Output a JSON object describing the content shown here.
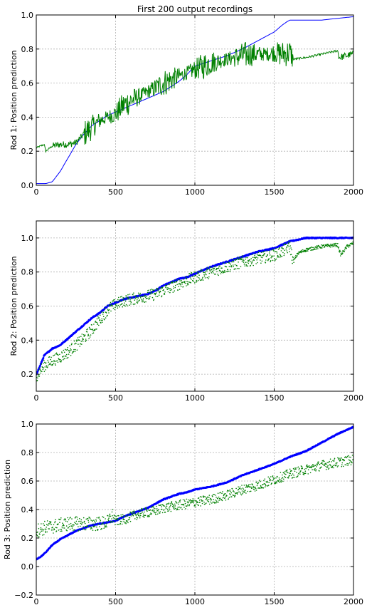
{
  "figure": {
    "title": "First 200 output recordings"
  },
  "colors": {
    "blue": "#0000ff",
    "green": "#008000"
  },
  "chart_data": [
    {
      "type": "line",
      "title": "First 200 output recordings",
      "xlabel": "",
      "ylabel": "Rod 1: Position prediction",
      "xlim": [
        0,
        2000
      ],
      "ylim": [
        0.0,
        1.0
      ],
      "xticks": [
        0,
        500,
        1000,
        1500,
        2000
      ],
      "yticks": [
        0.0,
        0.2,
        0.4,
        0.6,
        0.8,
        1.0
      ],
      "xtick_labels": [
        "0",
        "500",
        "1000",
        "1500",
        "2000"
      ],
      "ytick_labels": [
        "0.0",
        "0.2",
        "0.4",
        "0.6",
        "0.8",
        "1.0"
      ],
      "grid": true,
      "series": [
        {
          "color": "#0000ff",
          "style": "line",
          "x": [
            0,
            60,
            100,
            150,
            200,
            250,
            300,
            350,
            400,
            450,
            500,
            550,
            600,
            650,
            700,
            750,
            800,
            850,
            900,
            950,
            1000,
            1100,
            1200,
            1300,
            1400,
            1500,
            1550,
            1580,
            1600,
            1700,
            1800,
            1900,
            2000
          ],
          "y": [
            0.01,
            0.01,
            0.02,
            0.08,
            0.16,
            0.24,
            0.3,
            0.35,
            0.38,
            0.41,
            0.43,
            0.45,
            0.47,
            0.49,
            0.51,
            0.53,
            0.55,
            0.58,
            0.61,
            0.65,
            0.7,
            0.73,
            0.76,
            0.8,
            0.85,
            0.9,
            0.94,
            0.96,
            0.97,
            0.97,
            0.97,
            0.98,
            0.99
          ]
        },
        {
          "color": "#008000",
          "style": "noisy-line",
          "x": [
            0,
            50,
            60,
            100,
            150,
            200,
            250,
            300,
            350,
            400,
            450,
            500,
            550,
            600,
            650,
            700,
            750,
            800,
            850,
            900,
            950,
            1000,
            1050,
            1100,
            1150,
            1200,
            1250,
            1300,
            1350,
            1400,
            1450,
            1500,
            1550,
            1600,
            1620,
            1700,
            1800,
            1900,
            1910,
            1950,
            2000
          ],
          "y": [
            0.22,
            0.24,
            0.2,
            0.23,
            0.24,
            0.24,
            0.25,
            0.3,
            0.34,
            0.38,
            0.4,
            0.42,
            0.47,
            0.5,
            0.52,
            0.55,
            0.57,
            0.6,
            0.62,
            0.64,
            0.66,
            0.68,
            0.7,
            0.72,
            0.73,
            0.74,
            0.75,
            0.76,
            0.77,
            0.77,
            0.77,
            0.78,
            0.77,
            0.78,
            0.74,
            0.75,
            0.77,
            0.79,
            0.75,
            0.76,
            0.77
          ]
        }
      ]
    },
    {
      "type": "scatter",
      "title": "",
      "xlabel": "",
      "ylabel": "Rod 2: Position prediction",
      "xlim": [
        0,
        2000
      ],
      "ylim": [
        0.1,
        1.1
      ],
      "xticks": [
        0,
        500,
        1000,
        1500,
        2000
      ],
      "yticks": [
        0.2,
        0.4,
        0.6,
        0.8,
        1.0
      ],
      "xtick_labels": [
        "0",
        "500",
        "1000",
        "1500",
        "2000"
      ],
      "ytick_labels": [
        "0.2",
        "0.4",
        "0.6",
        "0.8",
        "1.0"
      ],
      "grid": true,
      "series": [
        {
          "color": "#0000ff",
          "style": "dense-points",
          "x": [
            0,
            20,
            50,
            100,
            150,
            200,
            250,
            300,
            350,
            400,
            450,
            500,
            550,
            600,
            650,
            700,
            750,
            800,
            850,
            900,
            950,
            1000,
            1100,
            1200,
            1300,
            1400,
            1500,
            1550,
            1600,
            1650,
            1700,
            1800,
            1900,
            2000
          ],
          "y": [
            0.2,
            0.24,
            0.31,
            0.35,
            0.37,
            0.41,
            0.45,
            0.49,
            0.53,
            0.56,
            0.6,
            0.62,
            0.64,
            0.65,
            0.66,
            0.67,
            0.69,
            0.72,
            0.74,
            0.76,
            0.77,
            0.79,
            0.83,
            0.86,
            0.89,
            0.92,
            0.94,
            0.96,
            0.98,
            0.99,
            1.0,
            1.0,
            1.0,
            1.0
          ]
        },
        {
          "color": "#008000",
          "style": "scattered-points",
          "x": [
            0,
            50,
            100,
            150,
            200,
            250,
            300,
            350,
            400,
            450,
            500,
            550,
            600,
            650,
            700,
            750,
            800,
            850,
            900,
            950,
            1000,
            1100,
            1200,
            1300,
            1400,
            1500,
            1550,
            1600,
            1620,
            1650,
            1700,
            1800,
            1900,
            1920,
            1960,
            2000
          ],
          "y": [
            0.19,
            0.25,
            0.28,
            0.3,
            0.33,
            0.37,
            0.41,
            0.46,
            0.52,
            0.58,
            0.61,
            0.63,
            0.64,
            0.65,
            0.66,
            0.67,
            0.69,
            0.71,
            0.73,
            0.75,
            0.77,
            0.8,
            0.83,
            0.86,
            0.88,
            0.9,
            0.92,
            0.95,
            0.86,
            0.91,
            0.93,
            0.95,
            0.96,
            0.9,
            0.95,
            0.97
          ]
        }
      ]
    },
    {
      "type": "scatter",
      "title": "",
      "xlabel": "",
      "ylabel": "Rod 3: Position prediction",
      "xlim": [
        0,
        2000
      ],
      "ylim": [
        -0.2,
        1.0
      ],
      "xticks": [
        0,
        500,
        1000,
        1500,
        2000
      ],
      "yticks": [
        -0.2,
        0.0,
        0.2,
        0.4,
        0.6,
        0.8,
        1.0
      ],
      "xtick_labels": [
        "0",
        "500",
        "1000",
        "1500",
        "2000"
      ],
      "ytick_labels": [
        "−0.2",
        "0.0",
        "0.2",
        "0.4",
        "0.6",
        "0.8",
        "1.0"
      ],
      "grid": true,
      "series": [
        {
          "color": "#0000ff",
          "style": "dense-points",
          "x": [
            0,
            30,
            60,
            100,
            150,
            200,
            250,
            300,
            350,
            400,
            450,
            500,
            550,
            600,
            650,
            700,
            750,
            800,
            850,
            900,
            950,
            1000,
            1100,
            1200,
            1300,
            1400,
            1500,
            1600,
            1700,
            1800,
            1900,
            2000
          ],
          "y": [
            0.05,
            0.07,
            0.1,
            0.15,
            0.19,
            0.22,
            0.25,
            0.27,
            0.29,
            0.3,
            0.31,
            0.32,
            0.35,
            0.37,
            0.39,
            0.41,
            0.44,
            0.47,
            0.49,
            0.51,
            0.52,
            0.54,
            0.56,
            0.59,
            0.64,
            0.68,
            0.72,
            0.77,
            0.81,
            0.87,
            0.93,
            0.98
          ]
        },
        {
          "color": "#008000",
          "style": "scattered-points",
          "x": [
            0,
            50,
            100,
            150,
            200,
            250,
            300,
            350,
            400,
            450,
            480,
            500,
            550,
            600,
            650,
            700,
            750,
            800,
            850,
            900,
            950,
            1000,
            1100,
            1200,
            1300,
            1400,
            1500,
            1600,
            1700,
            1800,
            1900,
            2000
          ],
          "y": [
            0.25,
            0.27,
            0.28,
            0.29,
            0.3,
            0.3,
            0.3,
            0.3,
            0.3,
            0.31,
            0.36,
            0.32,
            0.33,
            0.35,
            0.37,
            0.38,
            0.39,
            0.41,
            0.42,
            0.43,
            0.44,
            0.45,
            0.47,
            0.5,
            0.54,
            0.57,
            0.61,
            0.65,
            0.68,
            0.71,
            0.73,
            0.75
          ]
        }
      ]
    }
  ]
}
